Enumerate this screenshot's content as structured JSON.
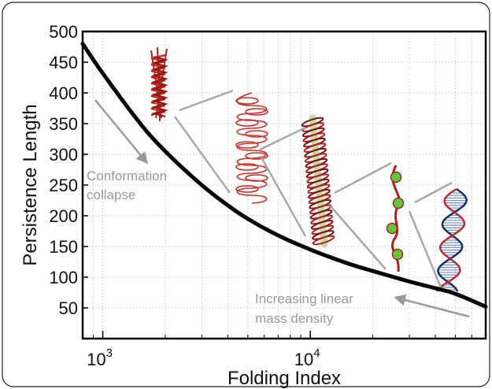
{
  "chart_data": {
    "type": "line",
    "title": "",
    "xlabel": "Folding Index",
    "ylabel": "Persistence Length",
    "xscale": "log",
    "xlim": [
      800,
      70000
    ],
    "ylim": [
      0,
      500
    ],
    "grid": true,
    "x_ticks": [
      {
        "value": 1000,
        "base": "10",
        "exp": "3"
      },
      {
        "value": 10000,
        "base": "10",
        "exp": "4"
      }
    ],
    "y_ticks": [
      "50",
      "100",
      "150",
      "200",
      "250",
      "300",
      "350",
      "400",
      "450",
      "500"
    ],
    "series": [
      {
        "color": "#000000",
        "x": [
          800,
          1000,
          1500,
          2000,
          3000,
          4000,
          5000,
          7000,
          10000,
          15000,
          20000,
          30000,
          40000,
          50000,
          70000
        ],
        "y": [
          480,
          432,
          352,
          305,
          250,
          217,
          195,
          168,
          145,
          123,
          110,
          93,
          82,
          73,
          52
        ]
      }
    ],
    "annotations": [
      {
        "lines": [
          "Conformation",
          "collapse"
        ],
        "color": "#9a9a9a",
        "arrow": "down-right"
      },
      {
        "lines": [
          "Increasing linear",
          "mass density"
        ],
        "color": "#9a9a9a",
        "arrow": "right-to-left"
      }
    ],
    "illustrations": [
      "chromatin-fiber-icon",
      "looped-fiber-icon",
      "solenoid-fiber-icon",
      "beads-on-string-icon",
      "dna-double-helix-icon"
    ]
  }
}
